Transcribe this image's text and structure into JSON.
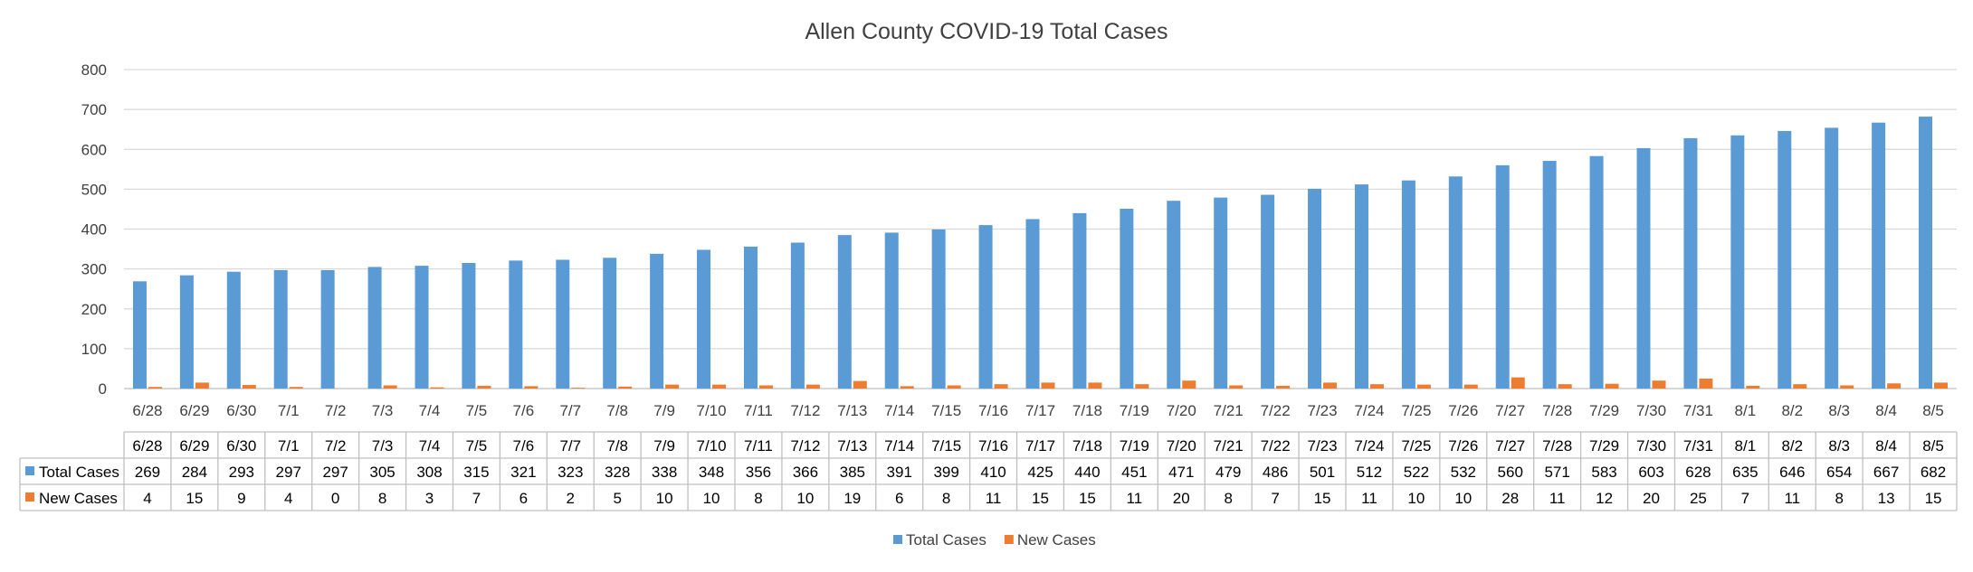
{
  "chart_data": {
    "type": "bar",
    "title": "Allen County COVID-19 Total Cases",
    "categories": [
      "6/28",
      "6/29",
      "6/30",
      "7/1",
      "7/2",
      "7/3",
      "7/4",
      "7/5",
      "7/6",
      "7/7",
      "7/8",
      "7/9",
      "7/10",
      "7/11",
      "7/12",
      "7/13",
      "7/14",
      "7/15",
      "7/16",
      "7/17",
      "7/18",
      "7/19",
      "7/20",
      "7/21",
      "7/22",
      "7/23",
      "7/24",
      "7/25",
      "7/26",
      "7/27",
      "7/28",
      "7/29",
      "7/30",
      "7/31",
      "8/1",
      "8/2",
      "8/3",
      "8/4",
      "8/5"
    ],
    "series": [
      {
        "name": "Total Cases",
        "color": "#5B9BD5",
        "values": [
          269,
          284,
          293,
          297,
          297,
          305,
          308,
          315,
          321,
          323,
          328,
          338,
          348,
          356,
          366,
          385,
          391,
          399,
          410,
          425,
          440,
          451,
          471,
          479,
          486,
          501,
          512,
          522,
          532,
          560,
          571,
          583,
          603,
          628,
          635,
          646,
          654,
          667,
          682
        ]
      },
      {
        "name": "New Cases",
        "color": "#ED7D31",
        "values": [
          4,
          15,
          9,
          4,
          0,
          8,
          3,
          7,
          6,
          2,
          5,
          10,
          10,
          8,
          10,
          19,
          6,
          8,
          11,
          15,
          15,
          11,
          20,
          8,
          7,
          15,
          11,
          10,
          10,
          28,
          11,
          12,
          20,
          25,
          7,
          11,
          8,
          13,
          15
        ]
      }
    ],
    "yticks": [
      "0",
      "100",
      "200",
      "300",
      "400",
      "500",
      "600",
      "700",
      "800"
    ],
    "ylim": [
      0,
      800
    ],
    "grid": true,
    "legend": "bottom",
    "data_table": true,
    "colors": {
      "grid": "#D9D9D9",
      "axis": "#BFBFBF",
      "text": "#404040"
    }
  }
}
